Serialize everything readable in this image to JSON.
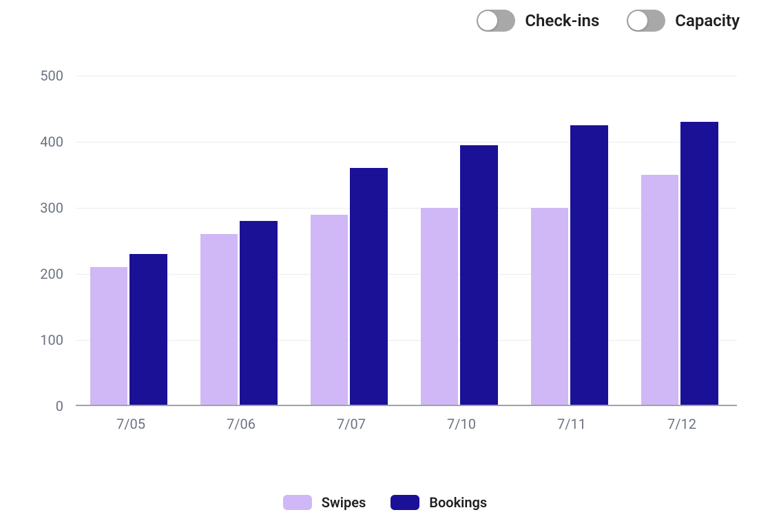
{
  "toggles": [
    {
      "label": "Check-ins",
      "on": false,
      "track_color": "#a8a8a8",
      "knob_side": "left"
    },
    {
      "label": "Capacity",
      "on": false,
      "track_color": "#a8a8a8",
      "knob_side": "left"
    }
  ],
  "chart": {
    "type": "grouped-bar",
    "background_color": "#ffffff",
    "grid_color": "#ececec",
    "axis_color": "#9ca3af",
    "tick_label_color": "#6b7280",
    "tick_fontsize": 20,
    "ylim": [
      0,
      500
    ],
    "ytick_step": 100,
    "categories": [
      "7/05",
      "7/06",
      "7/07",
      "7/10",
      "7/11",
      "7/12"
    ],
    "series": [
      {
        "name": "Swipes",
        "color": "#cfb8f5",
        "values": [
          210,
          260,
          290,
          300,
          300,
          350
        ]
      },
      {
        "name": "Bookings",
        "color": "#1a1197",
        "values": [
          230,
          280,
          360,
          395,
          425,
          430
        ]
      }
    ],
    "bar_width_ratio": 0.34,
    "bar_gap_ratio": 0.02,
    "group_padding_ratio": 0.13
  },
  "legend": {
    "items": [
      {
        "label": "Swipes",
        "color": "#cfb8f5"
      },
      {
        "label": "Bookings",
        "color": "#1a1197"
      }
    ],
    "fontsize": 20,
    "swatch_radius": 6
  }
}
